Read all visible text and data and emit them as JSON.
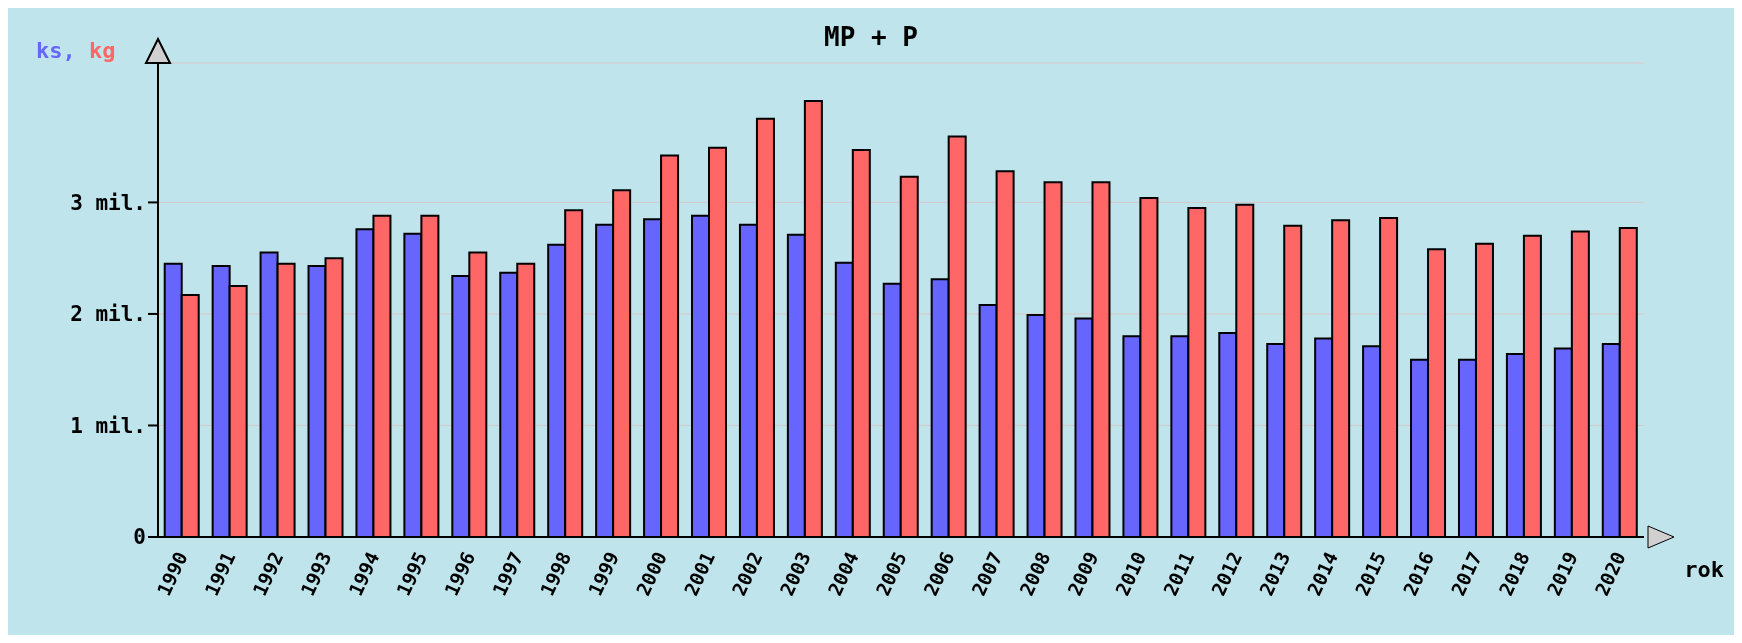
{
  "chart_data": {
    "type": "bar",
    "title": "MP + P",
    "xlabel": "rok",
    "categories": [
      "1990",
      "1991",
      "1992",
      "1993",
      "1994",
      "1995",
      "1996",
      "1997",
      "1998",
      "1999",
      "2000",
      "2001",
      "2002",
      "2003",
      "2004",
      "2005",
      "2006",
      "2007",
      "2008",
      "2009",
      "2010",
      "2011",
      "2012",
      "2013",
      "2014",
      "2015",
      "2016",
      "2017",
      "2018",
      "2019",
      "2020"
    ],
    "series": [
      {
        "name": "ks,",
        "color": "#6666ff",
        "values": [
          2.45,
          2.43,
          2.55,
          2.43,
          2.76,
          2.72,
          2.34,
          2.37,
          2.62,
          2.8,
          2.85,
          2.88,
          2.8,
          2.71,
          2.46,
          2.27,
          2.31,
          2.08,
          1.99,
          1.96,
          1.8,
          1.8,
          1.83,
          1.73,
          1.78,
          1.71,
          1.59,
          1.59,
          1.64,
          1.69,
          1.73
        ]
      },
      {
        "name": "kg",
        "color": "#ff6666",
        "values": [
          2.17,
          2.25,
          2.45,
          2.5,
          2.88,
          2.88,
          2.55,
          2.45,
          2.93,
          3.11,
          3.42,
          3.49,
          3.75,
          3.91,
          3.47,
          3.23,
          3.59,
          3.28,
          3.18,
          3.18,
          3.04,
          2.95,
          2.98,
          2.79,
          2.84,
          2.86,
          2.58,
          2.63,
          2.7,
          2.74,
          2.77
        ]
      }
    ],
    "ylim": [
      0,
      4.25
    ],
    "yticks": [
      0,
      {
        "value": 1,
        "label": "1 mil."
      },
      {
        "value": 2,
        "label": "2 mil."
      },
      {
        "value": 3,
        "label": "3 mil."
      }
    ],
    "grid": "y",
    "legend": "top left"
  }
}
